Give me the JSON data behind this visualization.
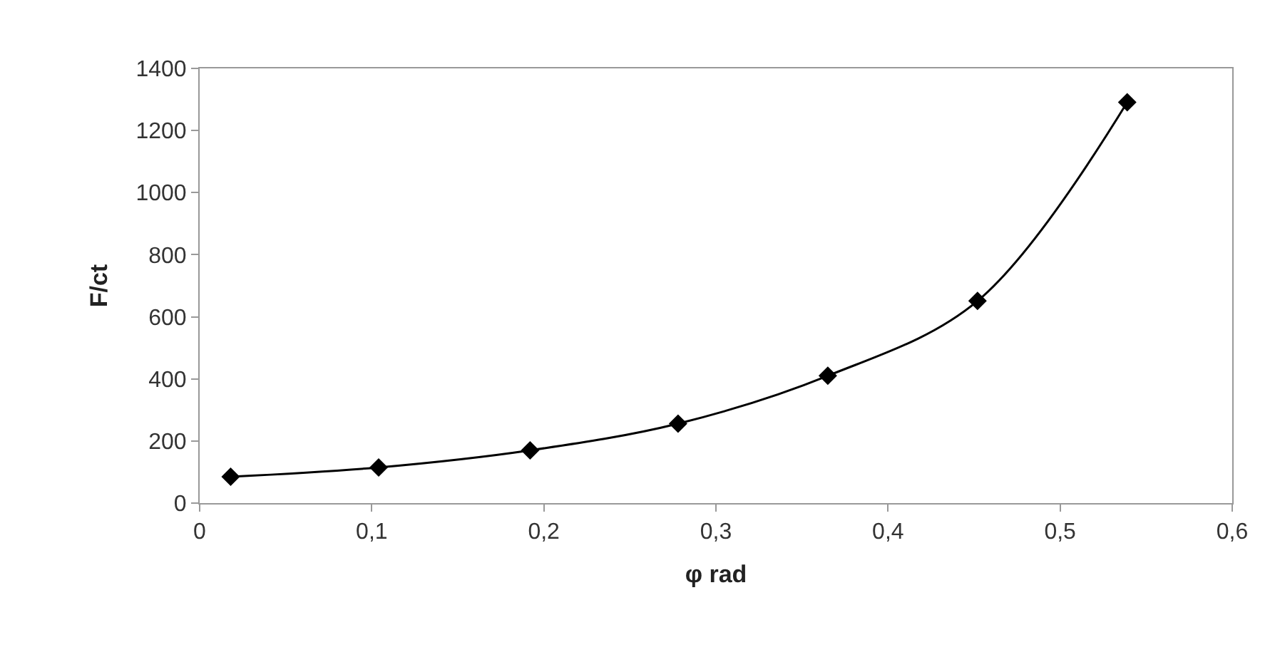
{
  "chart_data": {
    "type": "line",
    "xlabel": "φ rad",
    "ylabel": "F/ct",
    "x": [
      0.018,
      0.104,
      0.192,
      0.278,
      0.365,
      0.452,
      0.539
    ],
    "series": [
      {
        "color": "#000000",
        "values": [
          85,
          115,
          170,
          256,
          410,
          651,
          1291
        ]
      }
    ],
    "marker": "diamond",
    "line_style": "solid",
    "xlim": [
      0,
      0.6
    ],
    "xticks": [
      0,
      {
        "value": 0.1,
        "label": "0,1"
      },
      {
        "value": 0.2,
        "label": "0,2"
      },
      {
        "value": 0.3,
        "label": "0,3"
      },
      {
        "value": 0.4,
        "label": "0,4"
      },
      {
        "value": 0.5,
        "label": "0,5"
      },
      {
        "value": 0.6,
        "label": "0,6"
      }
    ],
    "ylim": [
      0,
      1400
    ],
    "yticks": [
      0,
      200,
      400,
      600,
      800,
      1000,
      1200,
      1400
    ]
  }
}
